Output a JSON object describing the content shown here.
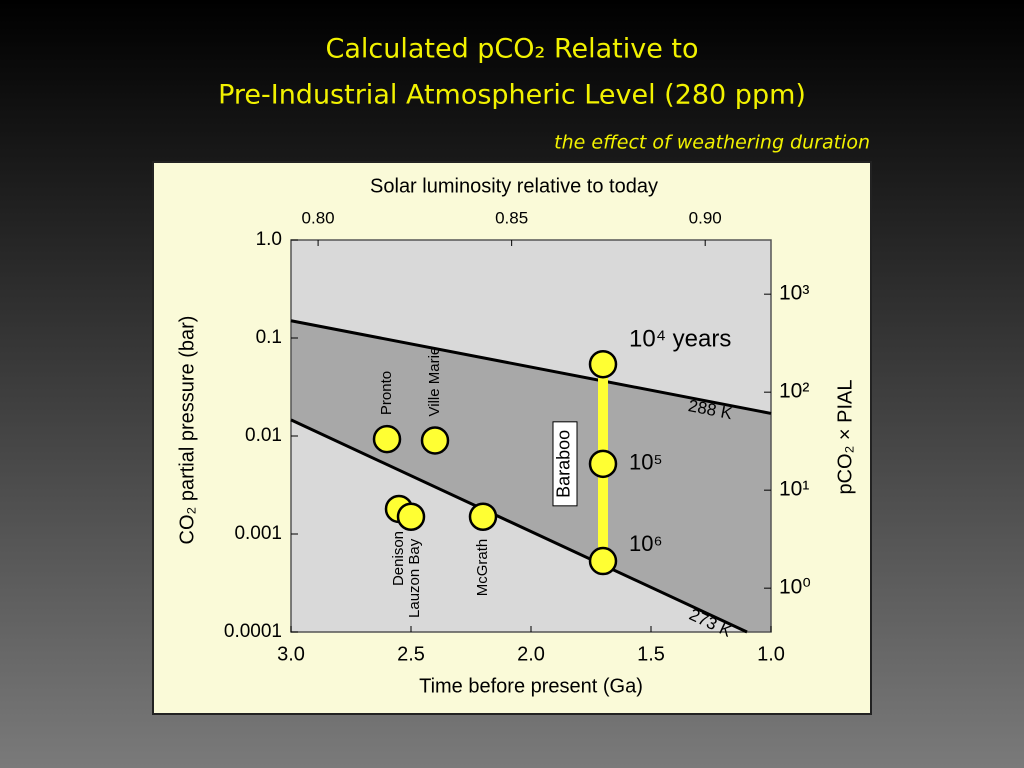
{
  "title": [
    "Calculated pCO₂ Relative to",
    "Pre-Industrial Atmospheric Level (280 ppm)"
  ],
  "subtitle": "the effect of weathering duration",
  "chart_data": {
    "type": "scatter",
    "xlabel": "Time before present (Ga)",
    "ylabel": "CO₂ partial pressure (bar)",
    "x2label": "Solar luminosity relative to today",
    "y2label": "pCO₂ × PIAL",
    "xlim": [
      3,
      1
    ],
    "xticks": [
      {
        "value": 3,
        "label": "3.0"
      },
      2.5,
      {
        "value": 2,
        "label": "2.0"
      },
      1.5,
      {
        "value": 1,
        "label": "1.0"
      }
    ],
    "ylim": [
      0.0001,
      1
    ],
    "yscale": "log",
    "yticks": [
      {
        "value": 1,
        "label": "1.0"
      },
      0.1,
      0.01,
      0.001,
      0.0001
    ],
    "x2lim": [
      0.793,
      0.917
    ],
    "x2ticks": [
      {
        "value": 0.8,
        "label": "0.80"
      },
      0.85,
      {
        "value": 0.9,
        "label": "0.90"
      }
    ],
    "y2lim": [
      0.357,
      3571
    ],
    "y2ticks": [
      {
        "value": 1,
        "label": "10⁰"
      },
      {
        "value": 10,
        "label": "10¹"
      },
      {
        "value": 100,
        "label": "10²"
      },
      {
        "value": 1000,
        "label": "10³"
      }
    ],
    "background": "#d9d9d9",
    "band_color": "#a8a8a8",
    "lines": [
      {
        "name": "288 K",
        "color": "#000000",
        "x": [
          3,
          1
        ],
        "values": [
          0.15,
          0.017
        ]
      },
      {
        "name": "273 K",
        "color": "#000000",
        "x": [
          3,
          1.1
        ],
        "values": [
          0.0146,
          0.0001
        ]
      }
    ],
    "series": [
      {
        "name": "Pronto",
        "color": "#ffff33",
        "x": [
          2.6
        ],
        "values": [
          0.0093
        ]
      },
      {
        "name": "Ville Marie",
        "color": "#ffff33",
        "x": [
          2.4
        ],
        "values": [
          0.009
        ]
      },
      {
        "name": "Denison",
        "color": "#ffff33",
        "x": [
          2.55
        ],
        "values": [
          0.0018
        ]
      },
      {
        "name": "Lauzon Bay",
        "color": "#ffff33",
        "x": [
          2.5
        ],
        "values": [
          0.0015
        ]
      },
      {
        "name": "McGrath",
        "color": "#ffff33",
        "x": [
          2.2
        ],
        "values": [
          0.0015
        ]
      },
      {
        "name": "Baraboo",
        "color": "#ffff33",
        "x": [
          1.7,
          1.7,
          1.7
        ],
        "values": [
          0.054,
          0.0052,
          0.00053
        ],
        "point_labels": [
          "10⁴ years",
          "10⁵",
          "10⁶"
        ]
      }
    ]
  }
}
